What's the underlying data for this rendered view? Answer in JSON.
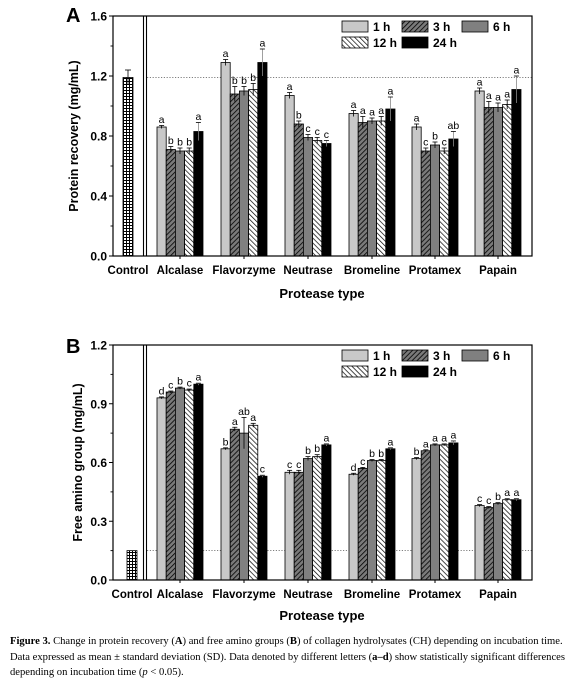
{
  "chart_data": [
    {
      "type": "bar",
      "panel_label": "A",
      "ylabel": "Protein recovery (mg/mL)",
      "xlabel": "Protease type",
      "ylim": [
        0,
        1.6
      ],
      "yticks": [
        0.0,
        0.4,
        0.8,
        1.2,
        1.6
      ],
      "ytick_labels": [
        "0.0",
        "0.4",
        "0.8",
        "1.2",
        "1.6"
      ],
      "reference_line": 1.19,
      "control": {
        "label": "Control",
        "value": 1.19,
        "error": 0.05
      },
      "categories": [
        "Alcalase",
        "Flavorzyme",
        "Neutrase",
        "Bromeline",
        "Protamex",
        "Papain"
      ],
      "series": [
        {
          "name": "1 h",
          "color": "#c8c8c8",
          "pattern": "solid",
          "values": [
            0.86,
            1.29,
            1.07,
            0.95,
            0.86,
            1.1
          ],
          "errors": [
            0.01,
            0.02,
            0.02,
            0.02,
            0.02,
            0.02
          ],
          "letters": [
            "a",
            "a",
            "a",
            "a",
            "a",
            "a"
          ]
        },
        {
          "name": "3 h",
          "color": "#707070",
          "pattern": "diag-right",
          "values": [
            0.71,
            1.08,
            0.88,
            0.89,
            0.7,
            0.99
          ],
          "errors": [
            0.02,
            0.05,
            0.02,
            0.04,
            0.02,
            0.04
          ],
          "letters": [
            "b",
            "b",
            "b",
            "a",
            "c",
            "a"
          ]
        },
        {
          "name": "6 h",
          "color": "#808080",
          "pattern": "solid",
          "values": [
            0.7,
            1.1,
            0.79,
            0.9,
            0.74,
            0.99
          ],
          "errors": [
            0.02,
            0.03,
            0.02,
            0.02,
            0.02,
            0.03
          ],
          "letters": [
            "b",
            "b",
            "c",
            "a",
            "b",
            "a"
          ]
        },
        {
          "name": "12 h",
          "color": "#ffffff",
          "pattern": "diag-left",
          "values": [
            0.7,
            1.11,
            0.77,
            0.9,
            0.7,
            1.01
          ],
          "errors": [
            0.02,
            0.04,
            0.02,
            0.03,
            0.02,
            0.03
          ],
          "letters": [
            "b",
            "b",
            "c",
            "a",
            "c",
            "a"
          ]
        },
        {
          "name": "24 h",
          "color": "#000000",
          "pattern": "solid",
          "values": [
            0.83,
            1.29,
            0.75,
            0.98,
            0.78,
            1.11
          ],
          "errors": [
            0.06,
            0.09,
            0.02,
            0.08,
            0.05,
            0.09
          ],
          "letters": [
            "a",
            "a",
            "c",
            "a",
            "ab",
            "a"
          ]
        }
      ],
      "legend_position": "top-right"
    },
    {
      "type": "bar",
      "panel_label": "B",
      "ylabel": "Free amino group (mg/mL)",
      "xlabel": "Protease type",
      "ylim": [
        0,
        1.2
      ],
      "yticks": [
        0.0,
        0.3,
        0.6,
        0.9,
        1.2
      ],
      "ytick_labels": [
        "0.0",
        "0.3",
        "0.6",
        "0.9",
        "1.2"
      ],
      "reference_line": 0.15,
      "control": {
        "label": "Control",
        "value": 0.15,
        "error": 0.0
      },
      "categories": [
        "Alcalase",
        "Flavorzyme",
        "Neutrase",
        "Bromeline",
        "Protamex",
        "Papain"
      ],
      "series": [
        {
          "name": "1 h",
          "color": "#c8c8c8",
          "pattern": "solid",
          "values": [
            0.93,
            0.67,
            0.55,
            0.54,
            0.62,
            0.38
          ],
          "errors": [
            0.005,
            0.005,
            0.01,
            0.005,
            0.005,
            0.005
          ],
          "letters": [
            "d",
            "b",
            "c",
            "d",
            "b",
            "c"
          ]
        },
        {
          "name": "3 h",
          "color": "#707070",
          "pattern": "diag-right",
          "values": [
            0.96,
            0.77,
            0.55,
            0.57,
            0.66,
            0.37
          ],
          "errors": [
            0.005,
            0.01,
            0.01,
            0.005,
            0.005,
            0.005
          ],
          "letters": [
            "c",
            "a",
            "c",
            "c",
            "a",
            "c"
          ]
        },
        {
          "name": "6 h",
          "color": "#808080",
          "pattern": "solid",
          "values": [
            0.98,
            0.75,
            0.62,
            0.61,
            0.69,
            0.39
          ],
          "errors": [
            0.005,
            0.08,
            0.01,
            0.005,
            0.005,
            0.005
          ],
          "letters": [
            "b",
            "ab",
            "b",
            "b",
            "a",
            "b"
          ]
        },
        {
          "name": "12 h",
          "color": "#ffffff",
          "pattern": "diag-left",
          "values": [
            0.97,
            0.79,
            0.63,
            0.61,
            0.69,
            0.41
          ],
          "errors": [
            0.005,
            0.01,
            0.01,
            0.005,
            0.005,
            0.005
          ],
          "letters": [
            "c",
            "a",
            "b",
            "b",
            "a",
            "a"
          ]
        },
        {
          "name": "24 h",
          "color": "#000000",
          "pattern": "solid",
          "values": [
            1.0,
            0.53,
            0.69,
            0.67,
            0.7,
            0.41
          ],
          "errors": [
            0.005,
            0.005,
            0.005,
            0.005,
            0.01,
            0.005
          ],
          "letters": [
            "a",
            "c",
            "a",
            "a",
            "a",
            "a"
          ]
        }
      ],
      "legend_position": "top-right"
    }
  ],
  "caption": {
    "label": "Figure 3.",
    "p1": " Change in protein recovery (",
    "A": "A",
    "p2": ") and free amino groups (",
    "B": "B",
    "p3": ") of collagen hydrolysates (CH) depending on incubation time. Data expressed as mean ± standard deviation (SD). Data denoted by different letters (",
    "range": "a–d",
    "p4": ") show statistically significant differences depending on incubation time (",
    "p": "p",
    "p5": " < 0.05)."
  }
}
